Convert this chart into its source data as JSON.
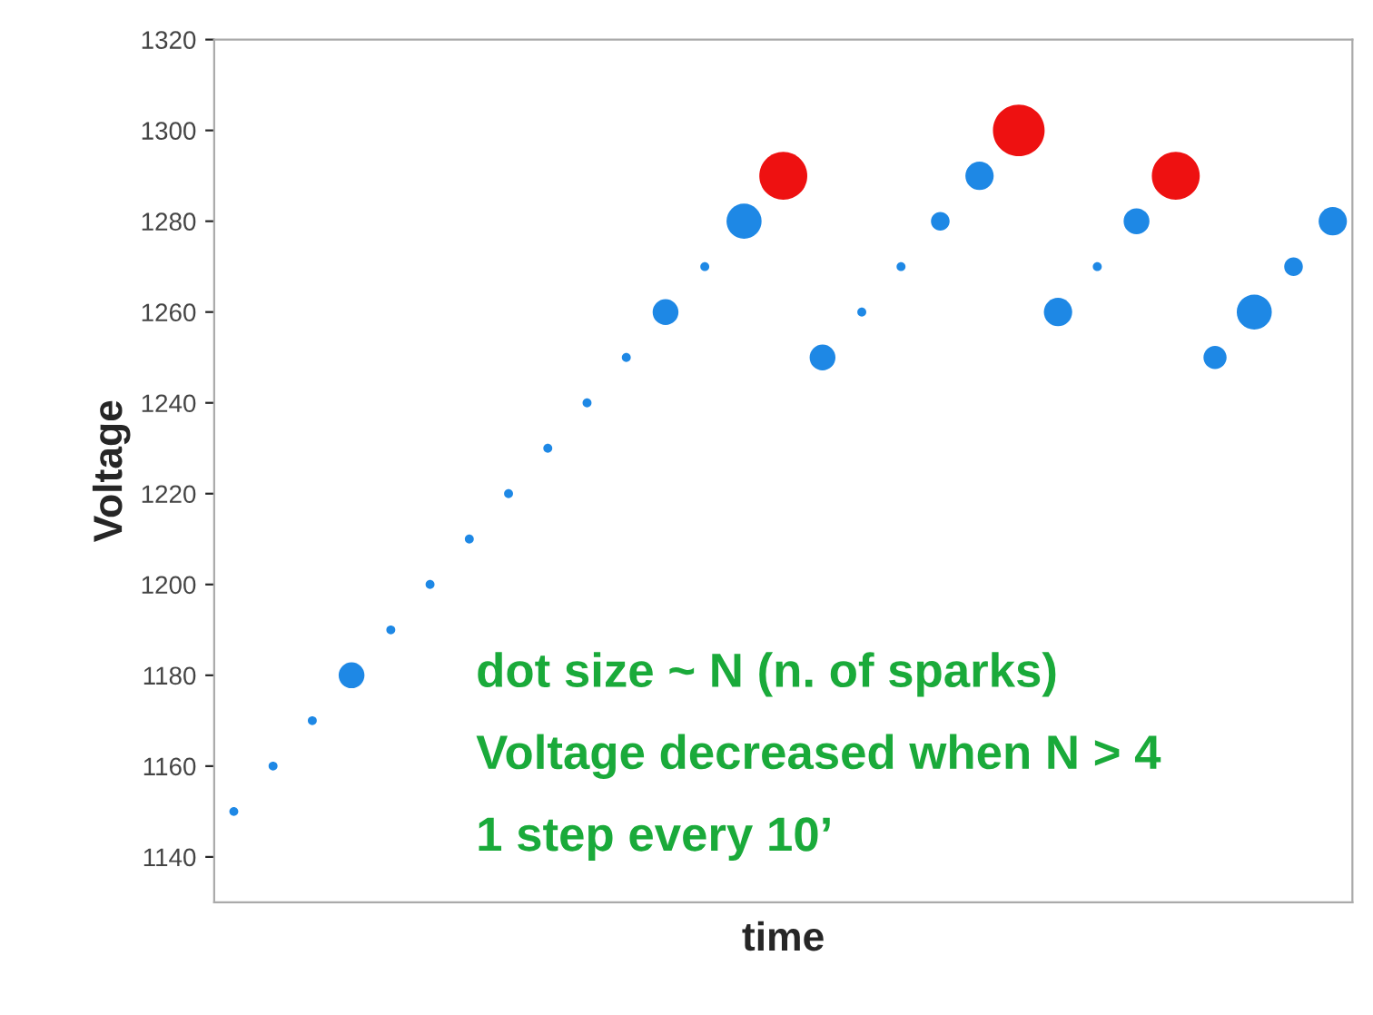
{
  "chart_data": {
    "type": "bubble",
    "xlabel": "time",
    "ylabel": "Voltage",
    "categories": [
      null,
      null,
      null,
      null,
      null,
      null,
      null,
      null,
      null,
      null,
      null,
      null,
      null,
      null,
      null,
      null,
      null,
      null,
      null,
      null,
      null,
      null,
      null,
      null,
      null,
      null,
      null,
      null,
      null
    ],
    "series": [
      {
        "color": "#1e88e5",
        "values": [
          1150,
          1160,
          1170,
          1180,
          1190,
          1200,
          1210,
          1220,
          1230,
          1240,
          1250,
          1260,
          1270,
          1280,
          null,
          1250,
          1260,
          1270,
          1280,
          1290,
          null,
          1260,
          1270,
          1280,
          null,
          1250,
          1260,
          1270,
          1280
        ],
        "sizes": [
          0.03,
          0.03,
          0.03,
          0.25,
          0.03,
          0.03,
          0.03,
          0.03,
          0.03,
          0.03,
          0.03,
          0.25,
          0.03,
          0.46,
          null,
          0.25,
          0.03,
          0.03,
          0.13,
          0.3,
          null,
          0.3,
          0.03,
          0.25,
          null,
          0.2,
          0.46,
          0.13,
          0.3
        ]
      },
      {
        "color": "#ee1111",
        "values": [
          null,
          null,
          null,
          null,
          null,
          null,
          null,
          null,
          null,
          null,
          null,
          null,
          null,
          null,
          1290,
          null,
          null,
          null,
          null,
          null,
          1300,
          null,
          null,
          null,
          1290,
          null,
          null,
          null,
          null
        ],
        "sizes": [
          null,
          null,
          null,
          null,
          null,
          null,
          null,
          null,
          null,
          null,
          null,
          null,
          null,
          null,
          0.86,
          null,
          null,
          null,
          null,
          null,
          1,
          null,
          null,
          null,
          0.86,
          null,
          null,
          null,
          null
        ]
      }
    ],
    "ylim": [
      1130,
      1320
    ],
    "yticks": [
      1140,
      1160,
      1180,
      1200,
      1220,
      1240,
      1260,
      1280,
      1300,
      1320
    ],
    "tick_labels": "y",
    "grid": false,
    "legend": false,
    "annotations": [
      "dot size ~ N (n. of sparks)",
      "Voltage decreased when N > 4",
      "1 step every 10’"
    ]
  }
}
